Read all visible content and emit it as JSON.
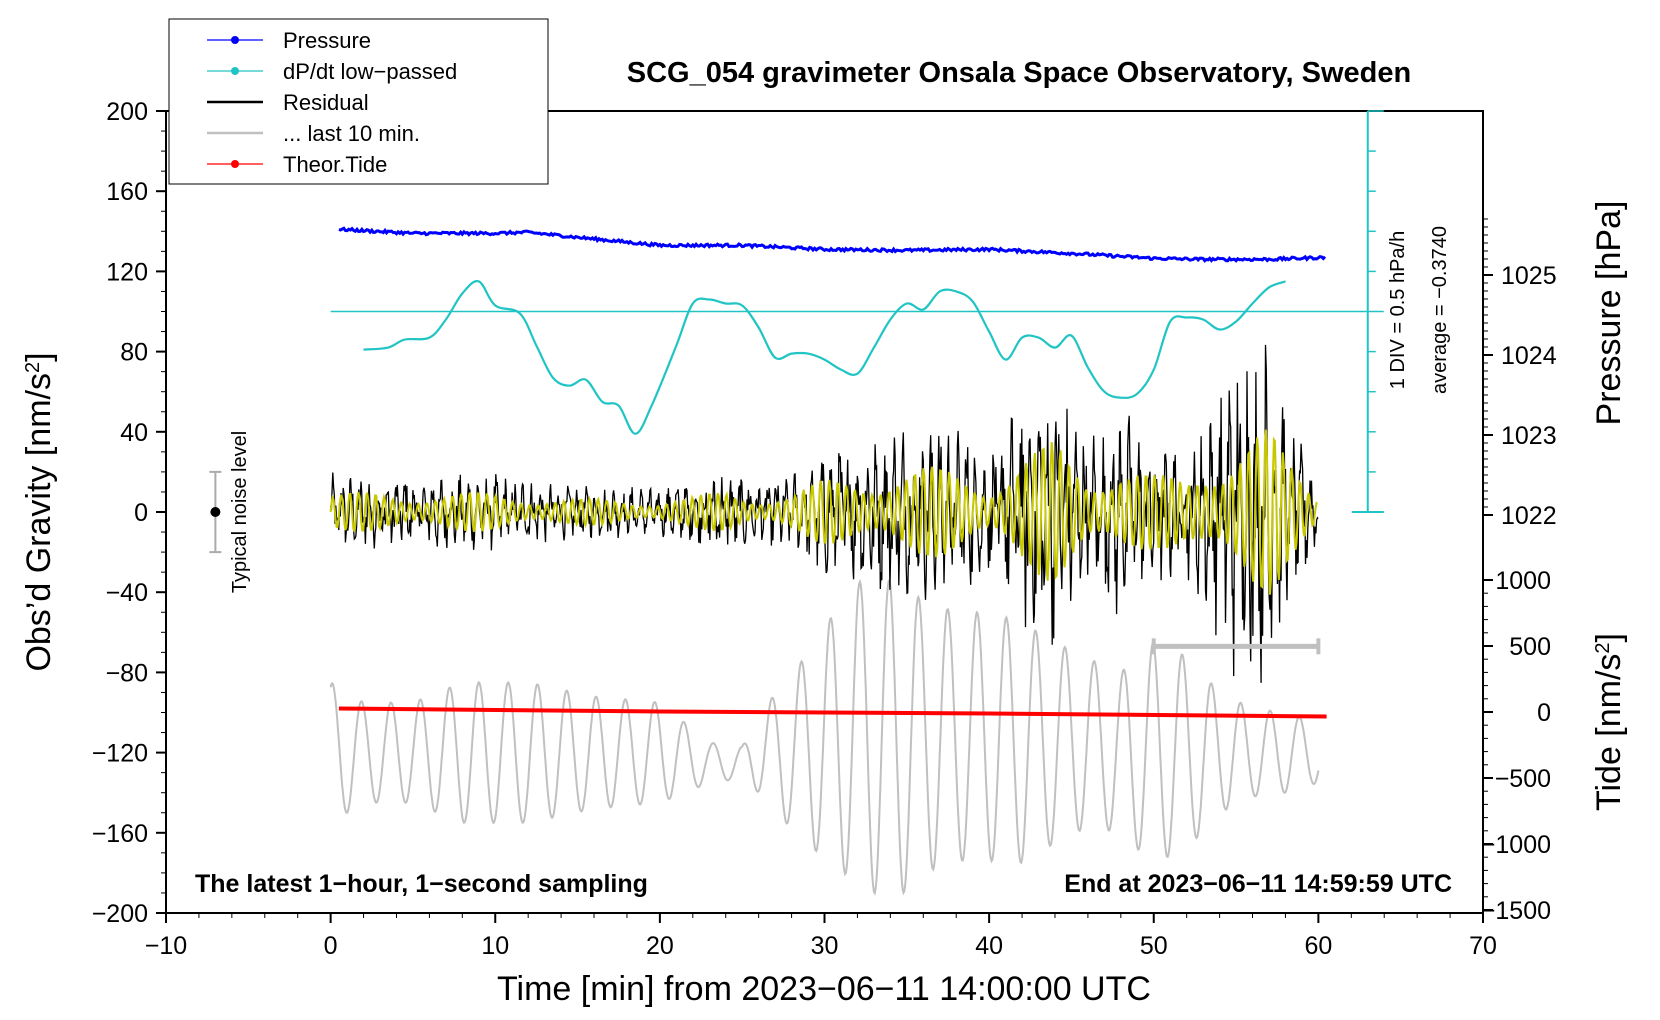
{
  "chart_data": {
    "type": "line",
    "title": "SCG_054 gravimeter Onsala Space Observatory, Sweden",
    "xlabel": "Time [min] from 2023−06−11 14:00:00 UTC",
    "ylabel_left": "Obs’d Gravity [nm/s",
    "ylabel_left_sup": "2",
    "ylabel_left_close": "]",
    "ylabel_right_pressure": "Pressure [hPa]",
    "ylabel_right_tide": "Tide [nm/s",
    "ylabel_right_tide_sup": "2",
    "ylabel_right_tide_close": "]",
    "xlim": [
      -10,
      70
    ],
    "ylim": [
      -200,
      200
    ],
    "x_ticks": [
      "−10",
      "0",
      "10",
      "20",
      "30",
      "40",
      "50",
      "60",
      "70"
    ],
    "y_ticks": [
      "200",
      "160",
      "120",
      "80",
      "40",
      "0",
      "−40",
      "−80",
      "−120",
      "−160",
      "−200"
    ],
    "pressure_ticks": [
      "1025",
      "1024",
      "1023",
      "1022"
    ],
    "pressure_tick_values": [
      1025,
      1024,
      1023,
      1022
    ],
    "tide_ticks": [
      "1000",
      "500",
      "0",
      "−500",
      "−1000",
      "−1500"
    ],
    "tide_tick_values": [
      1000,
      500,
      0,
      -500,
      -1000,
      -1500
    ],
    "legend": [
      {
        "label": "Pressure",
        "color": "#0000ff",
        "marker": true
      },
      {
        "label": "dP/dt low−passed",
        "color": "#20c4c4",
        "marker": true
      },
      {
        "label": "Residual",
        "color": "#000000",
        "marker": false
      },
      {
        "label": "... last 10 min.",
        "color": "#c0c0c0",
        "marker": false
      },
      {
        "label": "Theor.Tide",
        "color": "#ff0000",
        "marker": true
      }
    ],
    "annotations": {
      "bottom_left": "The latest 1−hour, 1−second sampling",
      "bottom_right": "End at 2023−06−11 14:59:59 UTC",
      "noise": "Typical noise level",
      "div": "1 DIV = 0.5 hPa/h",
      "average": "average = −0.3740"
    },
    "series": [
      {
        "name": "Pressure",
        "color": "#0000ff",
        "x": [
          0.5,
          5,
          10,
          12,
          15,
          20,
          25,
          30,
          35,
          40,
          45,
          50,
          53,
          57,
          60.5
        ],
        "y": [
          141,
          139,
          139,
          139.5,
          137,
          133,
          133,
          131,
          130.5,
          131,
          129,
          126.5,
          126,
          126,
          127
        ]
      },
      {
        "name": "dP/dt low-passed",
        "color": "#20c4c4",
        "x": [
          2,
          3.5,
          4.5,
          6,
          7,
          8,
          9,
          10,
          11.5,
          12.5,
          13.5,
          14.5,
          15.5,
          16.5,
          17.5,
          18.5,
          19.5,
          21,
          22,
          23,
          24,
          25,
          26,
          27,
          28,
          29,
          30,
          31,
          32,
          33,
          34,
          35,
          36,
          37,
          38,
          39,
          40,
          41,
          42,
          43,
          44,
          45,
          46,
          47,
          48,
          49,
          50,
          51,
          52,
          53,
          54,
          55,
          56,
          57,
          58
        ],
        "y": [
          81,
          82,
          86,
          87,
          96,
          109,
          115,
          103,
          99,
          83,
          67,
          63,
          66,
          55,
          53,
          39,
          53,
          83,
          104,
          106,
          104,
          103,
          92,
          77,
          79,
          79,
          76,
          71,
          69,
          82,
          96,
          104,
          101,
          110,
          110,
          105,
          90,
          76,
          87,
          87,
          82,
          88,
          72,
          60,
          57,
          59,
          71,
          95,
          97,
          96,
          91,
          95,
          104,
          112,
          115
        ]
      },
      {
        "name": "dP/dt zero line",
        "color": "#20c4c4",
        "x": [
          0,
          63
        ],
        "y": [
          100,
          100
        ]
      },
      {
        "name": "Theor.Tide",
        "color": "#ff0000",
        "x": [
          0.5,
          20,
          40,
          60.5
        ],
        "y": [
          -98,
          -99.5,
          -100.5,
          -102
        ]
      }
    ],
    "residual_envelope": {
      "x": [
        0,
        5,
        10,
        15,
        20,
        22,
        24,
        26,
        28,
        30,
        32,
        34,
        36,
        38,
        40,
        42,
        44,
        46,
        48,
        50,
        52,
        54,
        55,
        56,
        57,
        58,
        60
      ],
      "amplitude": [
        18,
        18,
        18,
        12,
        12,
        14,
        20,
        15,
        18,
        30,
        35,
        40,
        42,
        40,
        30,
        55,
        65,
        35,
        55,
        35,
        30,
        60,
        80,
        85,
        80,
        50,
        15
      ]
    },
    "grey_trace": {
      "x": [
        0,
        2,
        5,
        8,
        12,
        16,
        20,
        23,
        25,
        26,
        28,
        30,
        32,
        33,
        34,
        35,
        36,
        38,
        40,
        42,
        44,
        46,
        48,
        49,
        50,
        52,
        54,
        56,
        58,
        60
      ],
      "center": [
        -120,
        -120,
        -120,
        -120,
        -120,
        -120,
        -120,
        -125,
        -125,
        -120,
        -120,
        -115,
        -110,
        -112,
        -114,
        -114,
        -112,
        -112,
        -112,
        -115,
        -115,
        -115,
        -120,
        -120,
        -120,
        -120,
        -120,
        -120,
        -120,
        -120
      ],
      "amplitude": [
        35,
        25,
        25,
        35,
        35,
        28,
        25,
        10,
        8,
        20,
        38,
        58,
        75,
        78,
        80,
        75,
        68,
        62,
        62,
        60,
        50,
        42,
        40,
        48,
        55,
        48,
        30,
        22,
        20,
        15
      ]
    },
    "scale_bar": {
      "x_start": 50,
      "x_end": 60,
      "y": -67
    },
    "noise_bar": {
      "x": -7,
      "y": 0,
      "half_range": 20
    },
    "div_axis": {
      "x": 63,
      "y_bottom": 0,
      "y_top": 200
    }
  }
}
